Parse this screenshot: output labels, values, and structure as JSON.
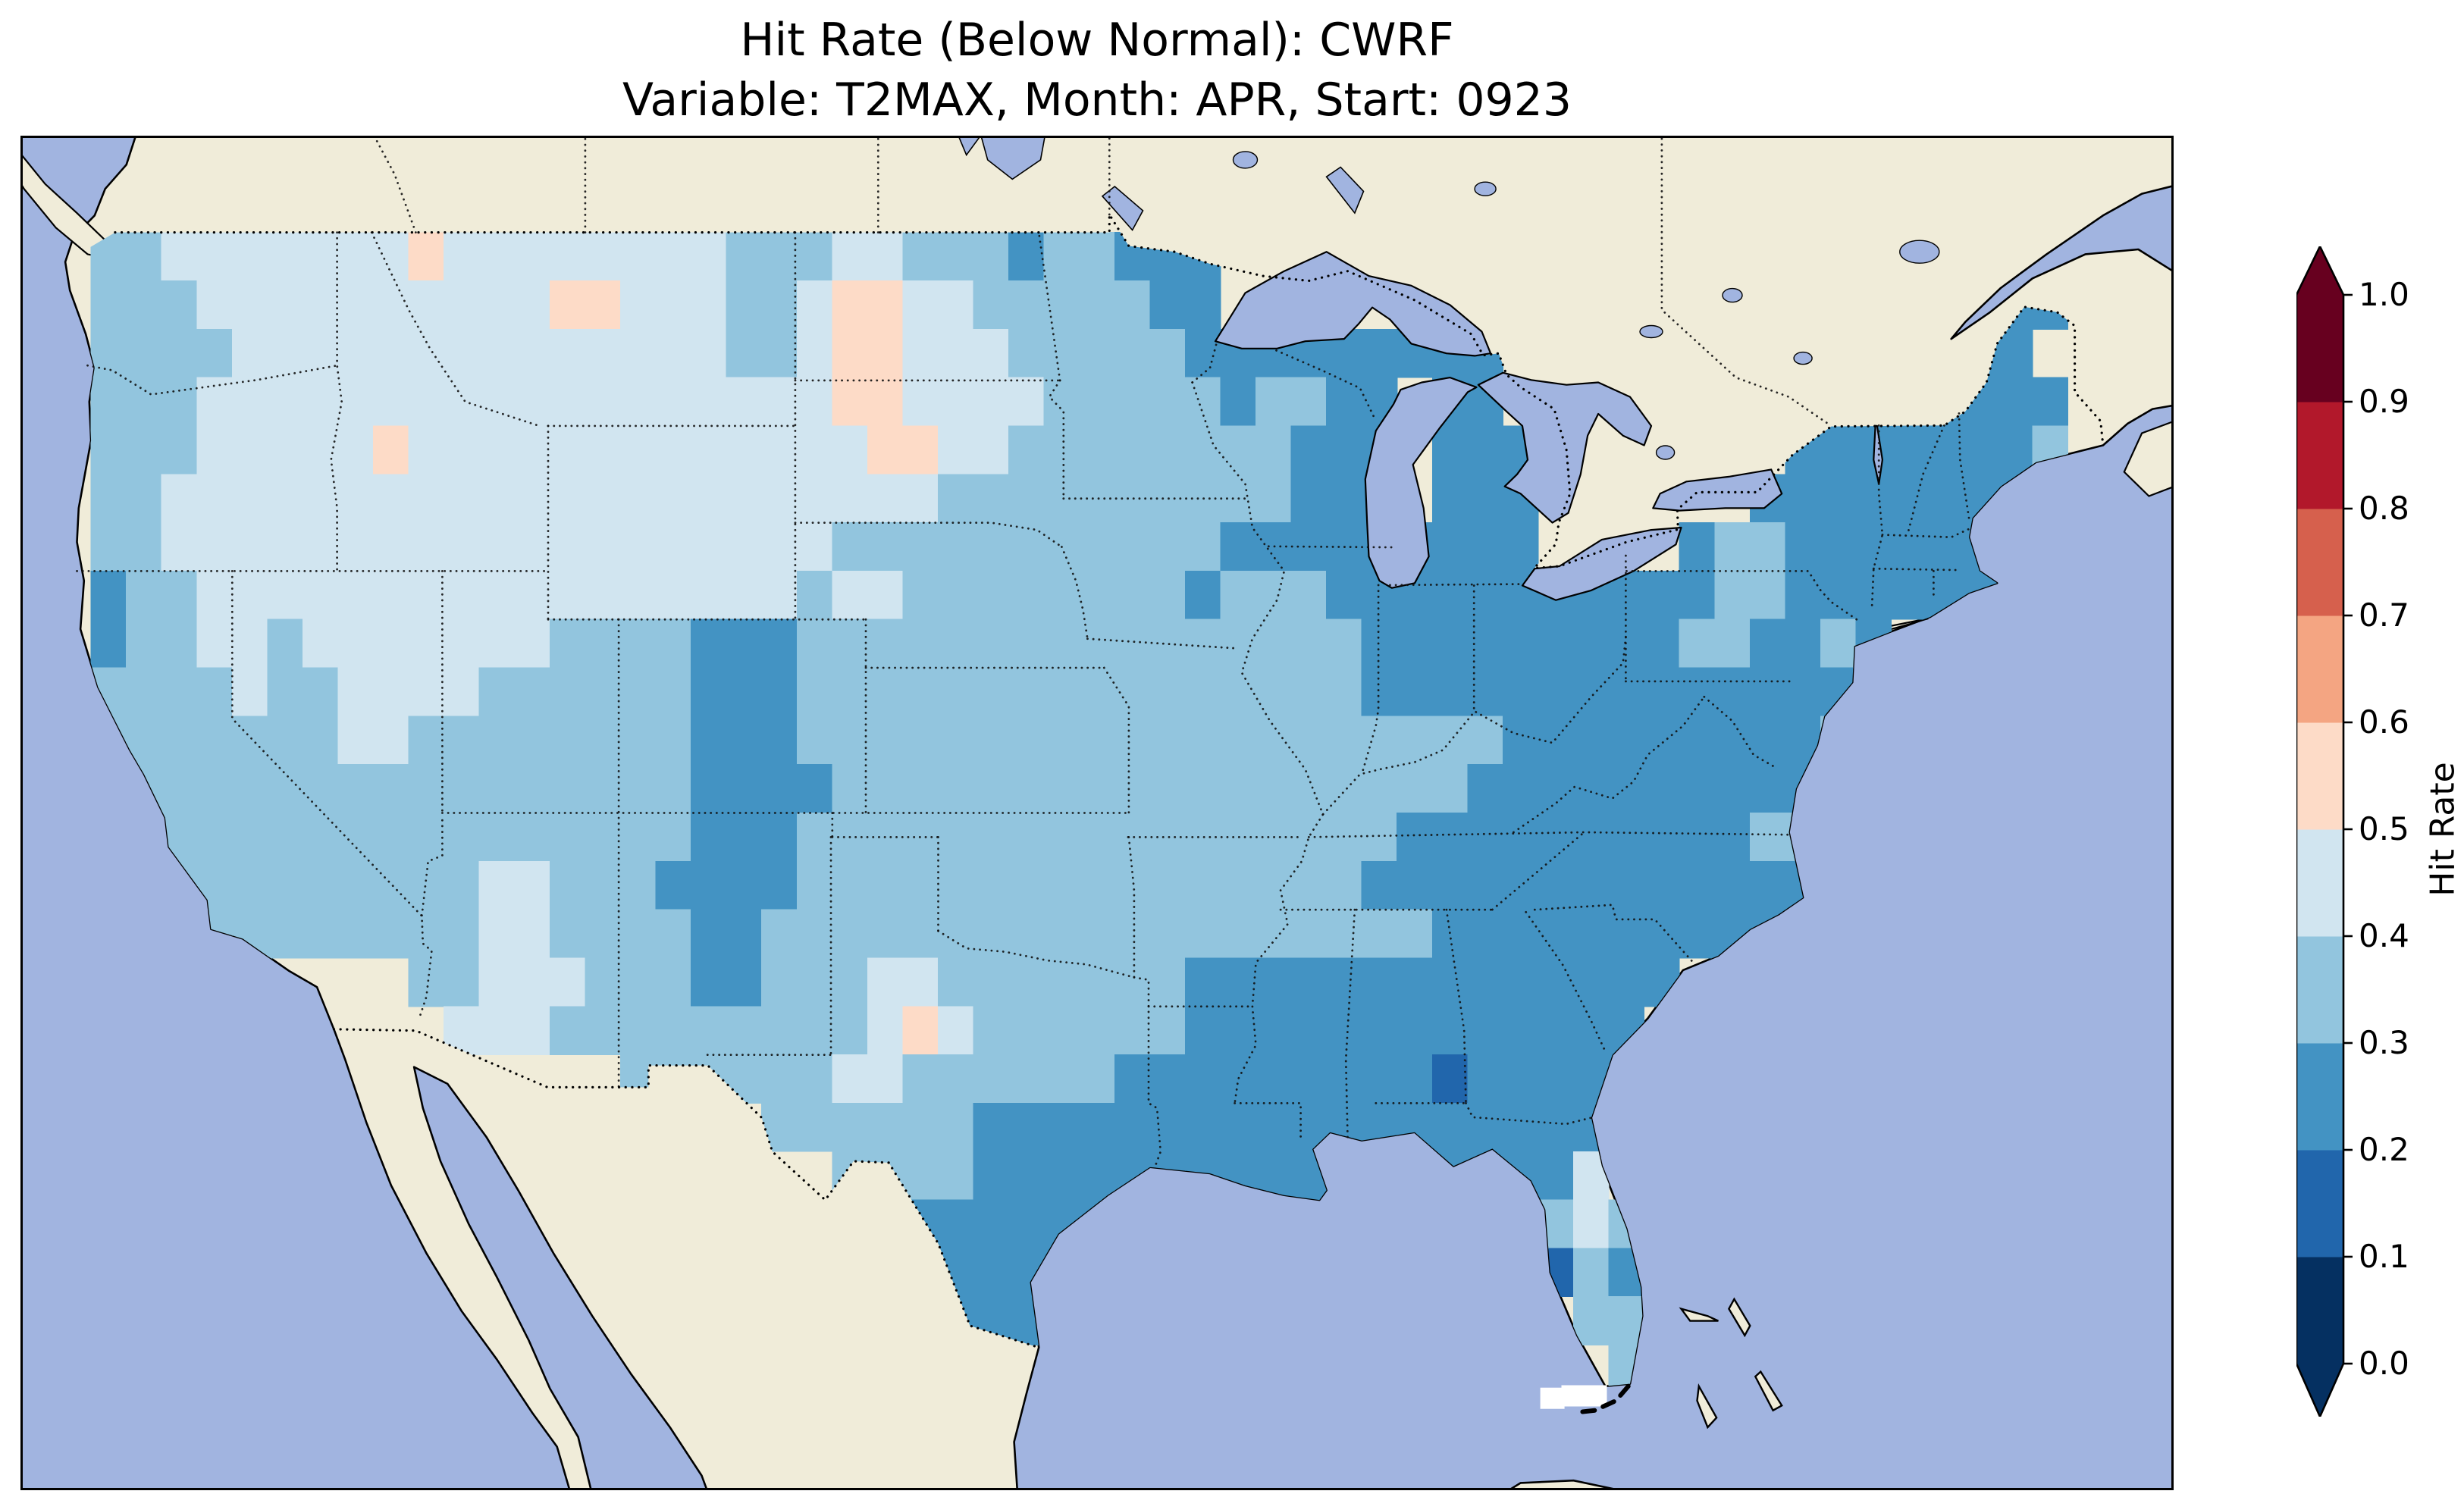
{
  "figure": {
    "background": "#ffffff",
    "title_line1": "Hit Rate (Below Normal): CWRF",
    "title_line2": "Variable: T2MAX, Month: APR, Start: 0923"
  },
  "map": {
    "ocean_color": "#a1b4e0",
    "land_color": "#f0ecd9",
    "coastline_color": "#000000",
    "boundary_linestyle": "dotted"
  },
  "colorbar": {
    "label": "Hit Rate",
    "ticks": [
      "1.0",
      "0.9",
      "0.8",
      "0.7",
      "0.6",
      "0.5",
      "0.4",
      "0.3",
      "0.2",
      "0.1",
      "0.0"
    ],
    "colors_bottom_to_top": [
      "#053061",
      "#2166ac",
      "#4393c3",
      "#92c5de",
      "#d1e5f0",
      "#fddbc7",
      "#f4a582",
      "#d6604d",
      "#b2182b",
      "#67001f"
    ],
    "under_color": "#053061",
    "over_color": "#67001f",
    "extend": "both"
  },
  "chart_data": {
    "type": "heatmap",
    "title": "Hit Rate (Below Normal): CWRF",
    "subtitle": "Variable: T2MAX, Month: APR, Start: 0923",
    "metric": "Hit Rate (Below Normal)",
    "model": "CWRF",
    "variable": "T2MAX",
    "month": "APR",
    "start": "0923",
    "region": "Contiguous United States",
    "colorbar_label": "Hit Rate",
    "colorbar_ticks": [
      0.0,
      0.1,
      0.2,
      0.3,
      0.4,
      0.5,
      0.6,
      0.7,
      0.8,
      0.9,
      1.0
    ],
    "bins": [
      {
        "min": 0.0,
        "max": 0.1,
        "color": "#053061"
      },
      {
        "min": 0.1,
        "max": 0.2,
        "color": "#2166ac"
      },
      {
        "min": 0.2,
        "max": 0.3,
        "color": "#4393c3"
      },
      {
        "min": 0.3,
        "max": 0.4,
        "color": "#92c5de"
      },
      {
        "min": 0.4,
        "max": 0.5,
        "color": "#d1e5f0"
      },
      {
        "min": 0.5,
        "max": 0.6,
        "color": "#fddbc7"
      },
      {
        "min": 0.6,
        "max": 0.7,
        "color": "#f4a582"
      },
      {
        "min": 0.7,
        "max": 0.8,
        "color": "#d6604d"
      },
      {
        "min": 0.8,
        "max": 0.9,
        "color": "#b2182b"
      },
      {
        "min": 0.9,
        "max": 1.0,
        "color": "#67001f"
      }
    ],
    "grid": {
      "approximate": true,
      "lon_west": -126,
      "lat_north": 51,
      "cell_size_deg": 1,
      "value_key": {
        ".": "no data",
        "1": "0.1-0.2",
        "2": "0.2-0.3",
        "3": "0.3-0.4",
        "4": "0.4-0.5",
        "5": "0.5-0.6"
      },
      "palette": {
        "0": "#053061",
        "1": "#2166ac",
        "2": "#4393c3",
        "3": "#92c5de",
        "4": "#d1e5f0",
        "5": "#fddbc7",
        "6": "#f4a582"
      },
      "rows": [
        ".............................................................",
        ".............................................................",
        "..33444444454444444433344333233222.....................222...",
        "..33344444444445544433455443333322....................2222...",
        "..3333444444444444443345544433333222222222............222....",
        "..3334444444444444444445544443333323322.22...........22222...",
        "..3334444454444444444444554433333333222.222.......22222223...",
        "..3344444444444444444444443333333333222.222......222222222...",
        "..33444444444444444444433333333333222222222....2332222222....",
        "..233444444444444444443443333333323332222222222233222222.....",
        "..233443444444433332223333333333333333222222222332232........",
        "..33334334444333333222333333333333333322222222222222333......",
        "..33333334433333333222333333333333333333332222222223333......",
        "..43333333333333333222233333333333333333322222222222333......",
        "..333333333333333332223333333333333333322222222223322........",
        "...3333333333443332222333333333333333322222222222222.........",
        "....33333333344333322333333333333333333322222222222..........",
        "...........334443332233344333333322222222222222..............",
        "............4443333333334543333332222222222222...............",
        ".................33333344333333222222222122222...............",
        ".....................3333332222222222222222222...............",
        ".......................33332222222222.2222224 32.............",
        "........................2222222............3432..............",
        ".........................22222.............132...............",
        "..........................222...............332..............",
        "..........................22.................33..............",
        ".............................................................",
        "............................................................."
      ]
    },
    "masked_cells": [
      [
        -82.6,
        24.9
      ],
      [
        -82.0,
        24.95
      ],
      [
        -81.4,
        24.95
      ]
    ],
    "masked_cells_color": "#ffffff"
  }
}
